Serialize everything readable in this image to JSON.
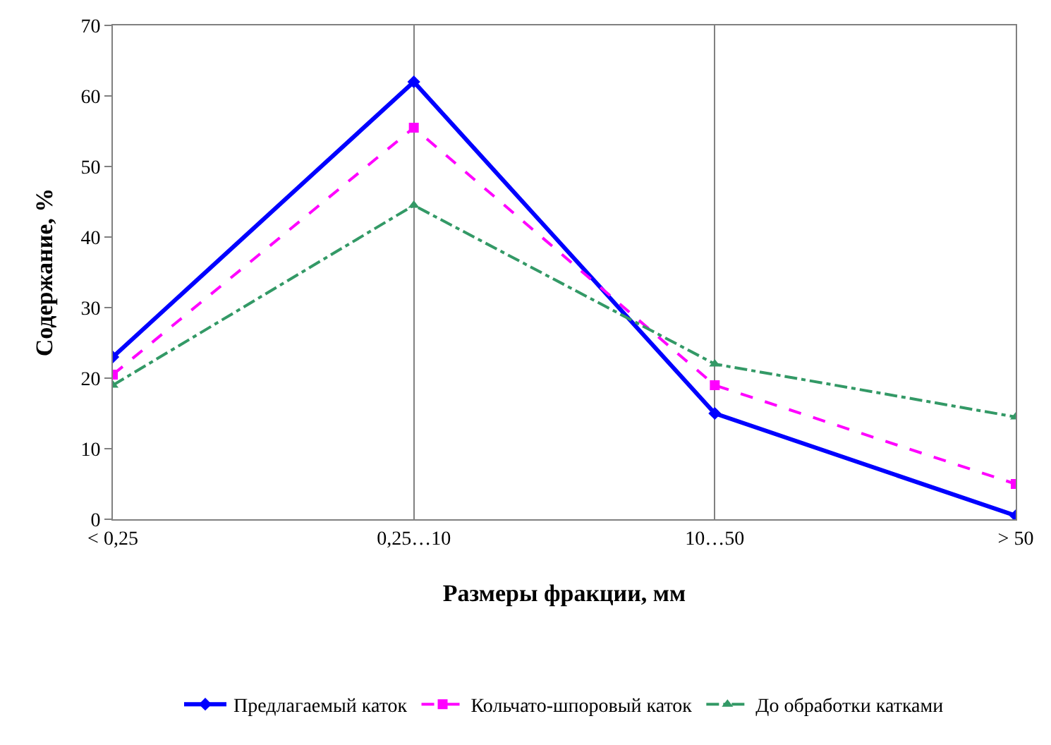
{
  "chart_data": {
    "type": "line",
    "xlabel": "Размеры фракции, мм",
    "ylabel": "Содержание, %",
    "categories": [
      "< 0,25",
      "0,25…10",
      "10…50",
      "> 50"
    ],
    "series": [
      {
        "name": "Предлагаемый каток",
        "color": "#0000ff",
        "values": [
          23,
          62,
          15,
          0.5
        ],
        "marker": "diamond",
        "line_style": "solid"
      },
      {
        "name": "Кольчато-шпоровый каток",
        "color": "#ff00ff",
        "values": [
          20.5,
          55.5,
          19,
          5
        ],
        "marker": "square",
        "line_style": "dashed"
      },
      {
        "name": "До обработки катками",
        "color": "#339966",
        "values": [
          19,
          44.5,
          22,
          14.5
        ],
        "marker": "triangle",
        "line_style": "dashdot"
      }
    ],
    "ylim": [
      0,
      70
    ],
    "yticks": [
      0,
      10,
      20,
      30,
      40,
      50,
      60,
      70
    ],
    "grid": "x",
    "legend": "bottom"
  }
}
